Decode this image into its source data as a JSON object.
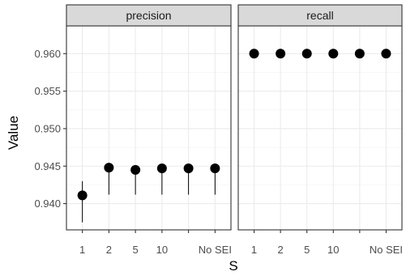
{
  "chart_data": {
    "type": "scatter",
    "xlabel": "S",
    "ylabel": "Value",
    "ylim": [
      0.9365,
      0.9637
    ],
    "y_ticks": [
      "0.940",
      "0.945",
      "0.950",
      "0.955",
      "0.960"
    ],
    "y_tick_values": [
      0.94,
      0.945,
      0.95,
      0.955,
      0.96
    ],
    "categories": [
      "1",
      "2",
      "5",
      "10",
      "",
      "No SEI"
    ],
    "grid": true,
    "panels": [
      {
        "name": "precision",
        "values": [
          0.9411,
          0.9448,
          0.9445,
          0.9447,
          0.9447,
          0.9447
        ],
        "lower": [
          0.9375,
          0.9412,
          0.9412,
          0.9412,
          0.9412,
          0.9412
        ],
        "upper": [
          0.943,
          0.9448,
          0.9445,
          0.9447,
          0.9447,
          0.9447
        ]
      },
      {
        "name": "recall",
        "values": [
          0.96,
          0.96,
          0.96,
          0.96,
          0.96,
          0.96
        ],
        "lower": [
          0.96,
          0.96,
          0.96,
          0.96,
          0.96,
          0.96
        ],
        "upper": [
          0.96,
          0.96,
          0.96,
          0.96,
          0.96,
          0.96
        ]
      }
    ],
    "colors": {
      "panel_bg": "#ffffff",
      "panel_border": "#333333",
      "strip_bg": "#d9d9d9",
      "grid_major": "#ebebeb",
      "grid_minor": "#f5f5f5",
      "point": "#000000"
    }
  }
}
